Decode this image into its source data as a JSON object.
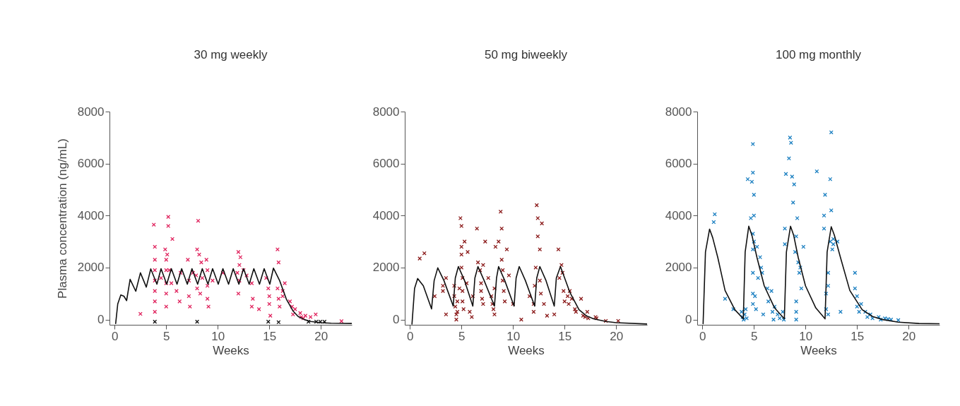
{
  "chart_data": [
    {
      "type": "scatter",
      "title": "30 mg weekly",
      "xlabel": "Weeks",
      "ylabel": "Plasma concentration (ng/mL)",
      "xlim": [
        -0.5,
        23
      ],
      "ylim": [
        -200,
        8000
      ],
      "xticks": [
        0,
        5,
        10,
        15,
        20
      ],
      "yticks": [
        0,
        2000,
        4000,
        6000,
        8000
      ],
      "series": [
        {
          "marker": "cross",
          "color": "#e0245e",
          "x": [
            2.5,
            3.8,
            3.9,
            3.9,
            3.9,
            3.9,
            3.9,
            3.9,
            3.9,
            4.5,
            4.9,
            5.0,
            5.0,
            5.0,
            5.0,
            5.0,
            5.2,
            5.2,
            5.1,
            5.3,
            5.6,
            5.5,
            6.0,
            6.4,
            6.3,
            7.1,
            7.2,
            7.2,
            7.3,
            7.6,
            7.9,
            8.0,
            8.1,
            8.2,
            8.0,
            8.3,
            8.4,
            8.5,
            8.9,
            9.0,
            9.0,
            9.0,
            9.1,
            9.5,
            10.5,
            11.9,
            12.0,
            12.1,
            12.1,
            12.0,
            12.2,
            12.5,
            12.8,
            13.3,
            13.4,
            13.3,
            14.0,
            14.7,
            14.9,
            15.0,
            15.0,
            15.1,
            15.8,
            15.9,
            15.8,
            15.9,
            16.0,
            16.3,
            16.3,
            16.5,
            17.0,
            17.2,
            17.3,
            17.5,
            18.0,
            18.1,
            18.3,
            18.5,
            19.0,
            19.5,
            22.0
          ],
          "values": [
            220,
            3650,
            2800,
            2300,
            1900,
            1500,
            1100,
            700,
            300,
            1600,
            2700,
            2300,
            1900,
            1400,
            1000,
            500,
            3950,
            3600,
            2500,
            1900,
            3100,
            1400,
            1100,
            1800,
            700,
            2300,
            1500,
            900,
            500,
            1800,
            1700,
            2700,
            3800,
            2500,
            1200,
            1000,
            2200,
            1600,
            2300,
            1900,
            1300,
            800,
            500,
            1500,
            1800,
            1800,
            2600,
            2100,
            1500,
            1000,
            2400,
            1900,
            1700,
            1400,
            800,
            500,
            400,
            1600,
            1200,
            900,
            600,
            150,
            2700,
            2200,
            1200,
            800,
            500,
            1100,
            900,
            1400,
            700,
            500,
            200,
            400,
            250,
            100,
            50,
            150,
            100,
            200,
            -60
          ]
        },
        {
          "marker": "cross",
          "color": "#111111",
          "x": [
            3.9,
            8.0,
            14.9,
            15.9,
            18.8,
            19.55,
            19.95,
            20.35
          ],
          "values": [
            -80,
            -80,
            -80,
            -100,
            -80,
            -80,
            -80,
            -80
          ]
        },
        {
          "type": "line",
          "color": "#111111",
          "x": [
            0.1,
            0.3,
            0.6,
            0.9,
            1.16,
            1.5,
            2.05,
            2.5,
            3.07,
            3.5,
            4.1,
            4.5,
            5.05,
            5.5,
            6.05,
            6.5,
            7.05,
            7.5,
            8.05,
            8.5,
            9.05,
            9.5,
            10.05,
            10.5,
            11.05,
            11.5,
            12.05,
            12.5,
            13.05,
            13.5,
            14.05,
            14.5,
            15.05,
            15.4,
            16.0,
            16.65,
            17.3,
            17.8,
            18.4,
            19.0,
            20.0,
            21.0,
            23.0
          ],
          "values": [
            -150,
            600,
            950,
            900,
            730,
            1550,
            1090,
            1800,
            1250,
            1950,
            1360,
            1960,
            1360,
            1960,
            1360,
            1960,
            1360,
            1960,
            1360,
            1960,
            1360,
            1960,
            1360,
            1960,
            1360,
            1960,
            1360,
            1960,
            1360,
            1960,
            1360,
            1960,
            1360,
            1980,
            1500,
            790,
            330,
            120,
            0,
            -70,
            -120,
            -140,
            -150
          ]
        }
      ]
    },
    {
      "type": "scatter",
      "title": "50 mg biweekly",
      "xlabel": "Weeks",
      "xlim": [
        -0.5,
        23
      ],
      "ylim": [
        -200,
        8000
      ],
      "xticks": [
        0,
        5,
        10,
        15,
        20
      ],
      "yticks": [
        0,
        2000,
        4000,
        6000,
        8000
      ],
      "series": [
        {
          "marker": "cross",
          "color": "#8b1a1a",
          "x": [
            0.95,
            1.4,
            2.4,
            3.2,
            3.2,
            3.5,
            3.5,
            4.3,
            4.3,
            4.4,
            4.5,
            4.5,
            4.6,
            4.6,
            4.8,
            4.9,
            5.0,
            5.0,
            5.0,
            5.0,
            5.1,
            5.1,
            5.1,
            5.2,
            5.3,
            5.5,
            5.6,
            5.8,
            6.0,
            6.1,
            6.5,
            6.6,
            6.8,
            6.9,
            6.9,
            7.0,
            7.1,
            7.1,
            7.3,
            7.6,
            7.9,
            8.0,
            8.1,
            8.2,
            8.2,
            8.3,
            8.6,
            8.8,
            8.9,
            8.9,
            9.0,
            9.0,
            9.1,
            9.2,
            9.4,
            9.6,
            10.0,
            10.8,
            11.6,
            12.0,
            12.0,
            12.1,
            12.2,
            12.3,
            12.4,
            12.4,
            12.6,
            12.8,
            12.6,
            12.7,
            13.0,
            13.3,
            14.0,
            14.4,
            14.5,
            14.7,
            14.8,
            14.9,
            15.0,
            15.3,
            15.5,
            15.4,
            15.7,
            16.0,
            16.1,
            16.6,
            16.8,
            17.0,
            17.2,
            17.3,
            18.0,
            18.1,
            19.0,
            20.2
          ],
          "values": [
            2350,
            2550,
            900,
            1300,
            1100,
            1600,
            200,
            1300,
            900,
            500,
            200,
            0,
            700,
            300,
            1200,
            3900,
            3600,
            2800,
            2500,
            2000,
            1600,
            1100,
            700,
            400,
            3000,
            1400,
            2600,
            300,
            100,
            900,
            3500,
            2200,
            1900,
            1400,
            1100,
            800,
            600,
            2100,
            3000,
            1600,
            900,
            600,
            400,
            200,
            1200,
            2800,
            3000,
            4150,
            3500,
            2300,
            1900,
            1500,
            1100,
            700,
            2700,
            1700,
            600,
            0,
            900,
            600,
            300,
            1300,
            2000,
            4400,
            3900,
            3200,
            2700,
            3700,
            1500,
            1000,
            600,
            150,
            200,
            2700,
            1600,
            2100,
            1800,
            1100,
            700,
            900,
            1100,
            600,
            800,
            400,
            300,
            800,
            150,
            100,
            300,
            50,
            100,
            50,
            -50,
            -50
          ]
        },
        {
          "type": "line",
          "color": "#111111",
          "x": [
            0.2,
            0.45,
            0.75,
            1.3,
            2.1,
            2.35,
            2.7,
            3.3,
            4.2,
            4.4,
            4.7,
            5.3,
            6.1,
            6.3,
            6.6,
            7.2,
            8.2,
            8.4,
            8.6,
            9.2,
            10.1,
            10.3,
            10.6,
            11.2,
            12.1,
            12.3,
            12.6,
            13.2,
            14.0,
            14.2,
            14.6,
            15.5,
            16.4,
            17.1,
            17.8,
            19.0,
            20.0,
            23.0
          ],
          "values": [
            -170,
            1200,
            1580,
            1300,
            410,
            1500,
            1990,
            1500,
            520,
            1600,
            2040,
            1500,
            520,
            1600,
            2040,
            1500,
            520,
            1600,
            2040,
            1500,
            520,
            1600,
            2040,
            1500,
            520,
            1600,
            2040,
            1500,
            520,
            1600,
            2040,
            1060,
            380,
            150,
            30,
            -70,
            -120,
            -170
          ]
        }
      ]
    },
    {
      "type": "scatter",
      "title": "100 mg monthly",
      "xlabel": "Weeks",
      "xlim": [
        -0.5,
        23
      ],
      "ylim": [
        -200,
        8000
      ],
      "xticks": [
        0,
        5,
        10,
        15,
        20
      ],
      "yticks": [
        0,
        2000,
        4000,
        6000,
        8000
      ],
      "series": [
        {
          "marker": "cross",
          "color": "#1a7fc1",
          "x": [
            1.1,
            1.2,
            2.2,
            3.0,
            3.8,
            3.9,
            4.0,
            4.1,
            4.2,
            4.3,
            4.4,
            4.9,
            4.9,
            4.8,
            4.7,
            4.9,
            4.9,
            5.0,
            5.0,
            5.0,
            4.9,
            4.9,
            4.9,
            5.1,
            5.2,
            5.3,
            5.4,
            5.6,
            5.7,
            5.8,
            5.9,
            6.3,
            6.4,
            6.7,
            6.8,
            6.9,
            7.0,
            7.3,
            7.5,
            7.8,
            7.9,
            8.0,
            8.0,
            8.1,
            8.4,
            8.5,
            8.6,
            8.7,
            8.8,
            8.9,
            9.0,
            9.1,
            9.2,
            9.3,
            9.4,
            9.5,
            9.8,
            9.1,
            9.1,
            9.1,
            9.6,
            11.1,
            11.8,
            11.8,
            11.9,
            12.0,
            12.2,
            12.4,
            12.5,
            12.5,
            12.4,
            12.7,
            12.7,
            12.2,
            12.2,
            12.0,
            12.6,
            13.1,
            13.4,
            14.8,
            14.8,
            15.0,
            15.0,
            15.2,
            15.4,
            15.8,
            16.0,
            16.3,
            16.5,
            17.1,
            17.3,
            17.7,
            18.0,
            18.3,
            19.0
          ],
          "values": [
            3750,
            4050,
            800,
            400,
            300,
            100,
            0,
            200,
            400,
            50,
            5400,
            6750,
            5650,
            5300,
            3900,
            3300,
            2700,
            4800,
            4000,
            3000,
            1800,
            1000,
            600,
            900,
            400,
            2800,
            1600,
            2400,
            2000,
            1800,
            200,
            1200,
            700,
            1100,
            300,
            0,
            500,
            200,
            50,
            300,
            0,
            3500,
            2900,
            5600,
            6200,
            7000,
            6800,
            5500,
            4500,
            5200,
            2600,
            3200,
            3900,
            2200,
            1800,
            2000,
            2800,
            0,
            300,
            700,
            1200,
            5700,
            3500,
            4000,
            4800,
            1000,
            200,
            5400,
            7200,
            4200,
            3000,
            2900,
            3100,
            1300,
            1800,
            400,
            2700,
            3000,
            300,
            1800,
            1200,
            900,
            500,
            300,
            600,
            300,
            100,
            200,
            50,
            100,
            0,
            50,
            20,
            0,
            -20
          ]
        },
        {
          "type": "line",
          "color": "#111111",
          "x": [
            0.07,
            0.3,
            0.7,
            1.0,
            1.5,
            2.2,
            3.15,
            3.97,
            4.15,
            4.5,
            4.8,
            5.3,
            6.0,
            7.0,
            7.95,
            8.15,
            8.55,
            8.85,
            9.3,
            10.0,
            11.0,
            11.9,
            12.1,
            12.5,
            12.8,
            13.4,
            14.3,
            15.5,
            16.5,
            17.5,
            19.0,
            21.0,
            23.0
          ],
          "values": [
            -160,
            2600,
            3480,
            3150,
            2380,
            1120,
            380,
            30,
            2600,
            3590,
            3250,
            2380,
            1300,
            450,
            30,
            2600,
            3590,
            3250,
            2380,
            1300,
            450,
            30,
            2600,
            3570,
            3250,
            2380,
            1120,
            380,
            120,
            0,
            -100,
            -150,
            -160
          ]
        }
      ]
    }
  ]
}
